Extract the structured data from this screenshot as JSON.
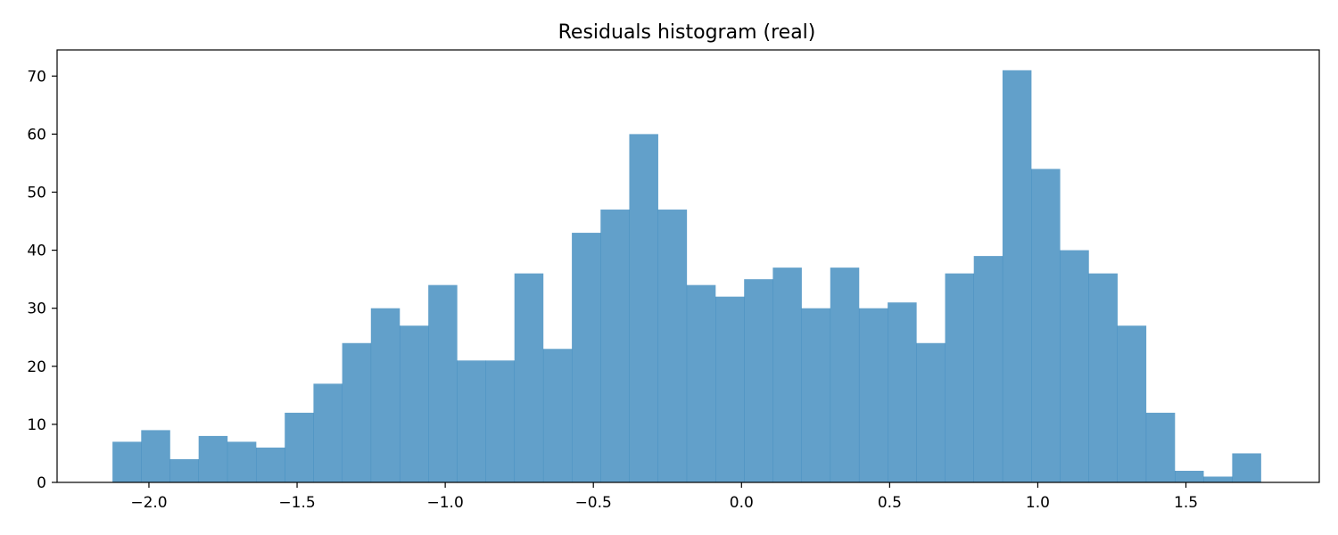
{
  "chart_data": {
    "type": "bar",
    "title": "Residuals histogram (real)",
    "xlabel": "",
    "ylabel": "",
    "bar_color": "#1f77b4",
    "bar_opacity": 0.7,
    "grid": false,
    "xlim": [
      -2.31,
      1.95
    ],
    "ylim": [
      0,
      74.5
    ],
    "bin_start": -2.123,
    "bin_width": 0.0969,
    "values": [
      7,
      9,
      4,
      8,
      7,
      6,
      12,
      17,
      24,
      30,
      27,
      34,
      21,
      21,
      36,
      23,
      43,
      47,
      60,
      47,
      34,
      32,
      35,
      37,
      30,
      37,
      30,
      31,
      24,
      36,
      39,
      71,
      54,
      40,
      36,
      27,
      12,
      2,
      1,
      5
    ],
    "xticks": [
      {
        "value": -2.0,
        "label": "−2.0"
      },
      {
        "value": -1.5,
        "label": "−1.5"
      },
      {
        "value": -1.0,
        "label": "−1.0"
      },
      {
        "value": -0.5,
        "label": "−0.5"
      },
      {
        "value": 0.0,
        "label": "0.0"
      },
      {
        "value": 0.5,
        "label": "0.5"
      },
      {
        "value": 1.0,
        "label": "1.0"
      },
      {
        "value": 1.5,
        "label": "1.5"
      }
    ],
    "yticks": [
      {
        "value": 0,
        "label": "0"
      },
      {
        "value": 10,
        "label": "10"
      },
      {
        "value": 20,
        "label": "20"
      },
      {
        "value": 30,
        "label": "30"
      },
      {
        "value": 40,
        "label": "40"
      },
      {
        "value": 50,
        "label": "50"
      },
      {
        "value": 60,
        "label": "60"
      },
      {
        "value": 70,
        "label": "70"
      }
    ]
  }
}
